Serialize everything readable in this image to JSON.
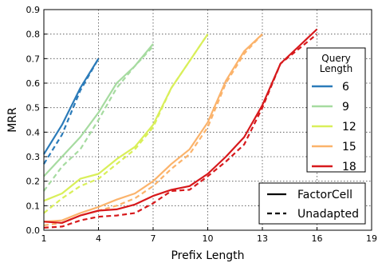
{
  "chart_data": {
    "type": "line",
    "xlabel": "Prefix Length",
    "ylabel": "MRR",
    "xlim": [
      1,
      19
    ],
    "ylim": [
      0,
      0.9
    ],
    "xticks": [
      1,
      4,
      7,
      10,
      13,
      16,
      19
    ],
    "yticks": [
      0.0,
      0.1,
      0.2,
      0.3,
      0.4,
      0.5,
      0.6,
      0.7,
      0.8,
      0.9
    ],
    "xtick_labels": [
      "1",
      "4",
      "7",
      "10",
      "13",
      "16",
      "19"
    ],
    "ytick_labels": [
      "0.0",
      "0.1",
      "0.2",
      "0.3",
      "0.4",
      "0.5",
      "0.6",
      "0.7",
      "0.8",
      "0.9"
    ],
    "grid": true,
    "series": [
      {
        "name": "6",
        "model": "FactorCell",
        "color": "#2b7bb9",
        "dash": "solid",
        "x": [
          1,
          2,
          3,
          4
        ],
        "y": [
          0.31,
          0.43,
          0.58,
          0.7
        ]
      },
      {
        "name": "6",
        "model": "Unadapted",
        "color": "#2b7bb9",
        "dash": "dashed",
        "x": [
          1,
          2,
          3,
          4
        ],
        "y": [
          0.27,
          0.39,
          0.57,
          0.7
        ]
      },
      {
        "name": "9",
        "model": "FactorCell",
        "color": "#a6dba0",
        "dash": "solid",
        "x": [
          1,
          2,
          3,
          4,
          5,
          6,
          7
        ],
        "y": [
          0.22,
          0.3,
          0.38,
          0.48,
          0.6,
          0.67,
          0.76
        ]
      },
      {
        "name": "9",
        "model": "Unadapted",
        "color": "#a6dba0",
        "dash": "dashed",
        "x": [
          1,
          2,
          3,
          4,
          5,
          6,
          7
        ],
        "y": [
          0.16,
          0.26,
          0.33,
          0.45,
          0.58,
          0.67,
          0.75
        ]
      },
      {
        "name": "12",
        "model": "FactorCell",
        "color": "#d9ef5a",
        "dash": "solid",
        "x": [
          1,
          2,
          3,
          4,
          5,
          6,
          7,
          8,
          9,
          10
        ],
        "y": [
          0.12,
          0.15,
          0.21,
          0.23,
          0.29,
          0.34,
          0.43,
          0.58,
          0.69,
          0.8
        ]
      },
      {
        "name": "12",
        "model": "Unadapted",
        "color": "#d9ef5a",
        "dash": "dashed",
        "x": [
          1,
          2,
          3,
          4,
          5,
          6,
          7,
          8,
          9,
          10
        ],
        "y": [
          0.07,
          0.13,
          0.18,
          0.21,
          0.27,
          0.33,
          0.42,
          0.58,
          0.69,
          0.8
        ]
      },
      {
        "name": "15",
        "model": "FactorCell",
        "color": "#fbb36b",
        "dash": "solid",
        "x": [
          1,
          2,
          3,
          4,
          5,
          6,
          7,
          8,
          9,
          10,
          11,
          12,
          13
        ],
        "y": [
          0.035,
          0.04,
          0.07,
          0.095,
          0.125,
          0.15,
          0.2,
          0.27,
          0.33,
          0.44,
          0.61,
          0.73,
          0.8
        ]
      },
      {
        "name": "15",
        "model": "Unadapted",
        "color": "#fbb36b",
        "dash": "dashed",
        "x": [
          1,
          2,
          3,
          4,
          5,
          6,
          7,
          8,
          9,
          10,
          11,
          12,
          13
        ],
        "y": [
          0.02,
          0.03,
          0.06,
          0.08,
          0.1,
          0.13,
          0.18,
          0.25,
          0.31,
          0.42,
          0.6,
          0.72,
          0.8
        ]
      },
      {
        "name": "18",
        "model": "FactorCell",
        "color": "#d7191c",
        "dash": "solid",
        "x": [
          1,
          2,
          3,
          4,
          5,
          6,
          7,
          8,
          9,
          10,
          11,
          12,
          13,
          14,
          15,
          16
        ],
        "y": [
          0.035,
          0.03,
          0.06,
          0.08,
          0.085,
          0.105,
          0.14,
          0.165,
          0.18,
          0.23,
          0.3,
          0.38,
          0.51,
          0.68,
          0.75,
          0.82
        ]
      },
      {
        "name": "18",
        "model": "Unadapted",
        "color": "#d7191c",
        "dash": "dashed",
        "x": [
          1,
          2,
          3,
          4,
          5,
          6,
          7,
          8,
          9,
          10,
          11,
          12,
          13,
          14,
          15,
          16
        ],
        "y": [
          0.01,
          0.015,
          0.04,
          0.055,
          0.06,
          0.07,
          0.11,
          0.16,
          0.165,
          0.22,
          0.28,
          0.35,
          0.5,
          0.68,
          0.74,
          0.8
        ]
      }
    ],
    "legends": {
      "query_length": {
        "title_lines": [
          "Query",
          "Length"
        ],
        "placement": "right",
        "entries": [
          {
            "label": "6",
            "color": "#2b7bb9"
          },
          {
            "label": "9",
            "color": "#a6dba0"
          },
          {
            "label": "12",
            "color": "#d9ef5a"
          },
          {
            "label": "15",
            "color": "#fbb36b"
          },
          {
            "label": "18",
            "color": "#d7191c"
          }
        ]
      },
      "model": {
        "placement": "bottom-right",
        "entries": [
          {
            "label": "FactorCell",
            "dash": "solid"
          },
          {
            "label": "Unadapted",
            "dash": "dashed"
          }
        ]
      }
    }
  }
}
